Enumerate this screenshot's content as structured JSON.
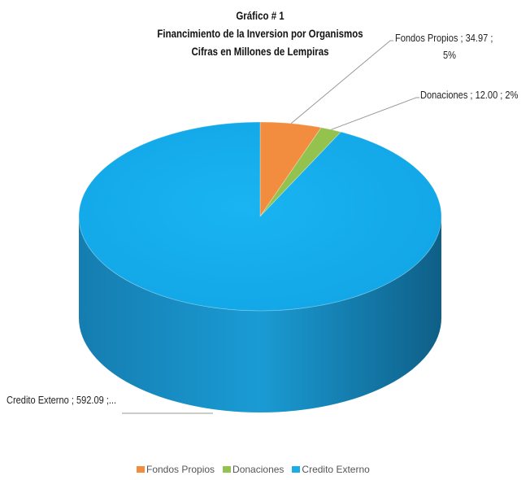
{
  "chart_data": {
    "type": "pie",
    "title_lines": [
      "Gráfico # 1",
      "Financimiento de la Inversion por Organismos",
      "Cifras en Millones de Lempiras"
    ],
    "slices": [
      {
        "name": "Fondos Propios",
        "value": 34.97,
        "label_text": "Fondos Propios ; 34.97 ;",
        "label_text2": "5%",
        "color": "#F28C3E"
      },
      {
        "name": "Donaciones",
        "value": 12.0,
        "label_text": "Donaciones ; 12.00 ; 2%",
        "color": "#93C24F"
      },
      {
        "name": "Credito Externo",
        "value": 592.09,
        "label_text": "Credito Externo ; 592.09 ;...",
        "color": "#1AADEA"
      }
    ],
    "legend": [
      "Fondos Propios",
      "Donaciones",
      "Credito Externo"
    ],
    "legend_position": "bottom"
  }
}
